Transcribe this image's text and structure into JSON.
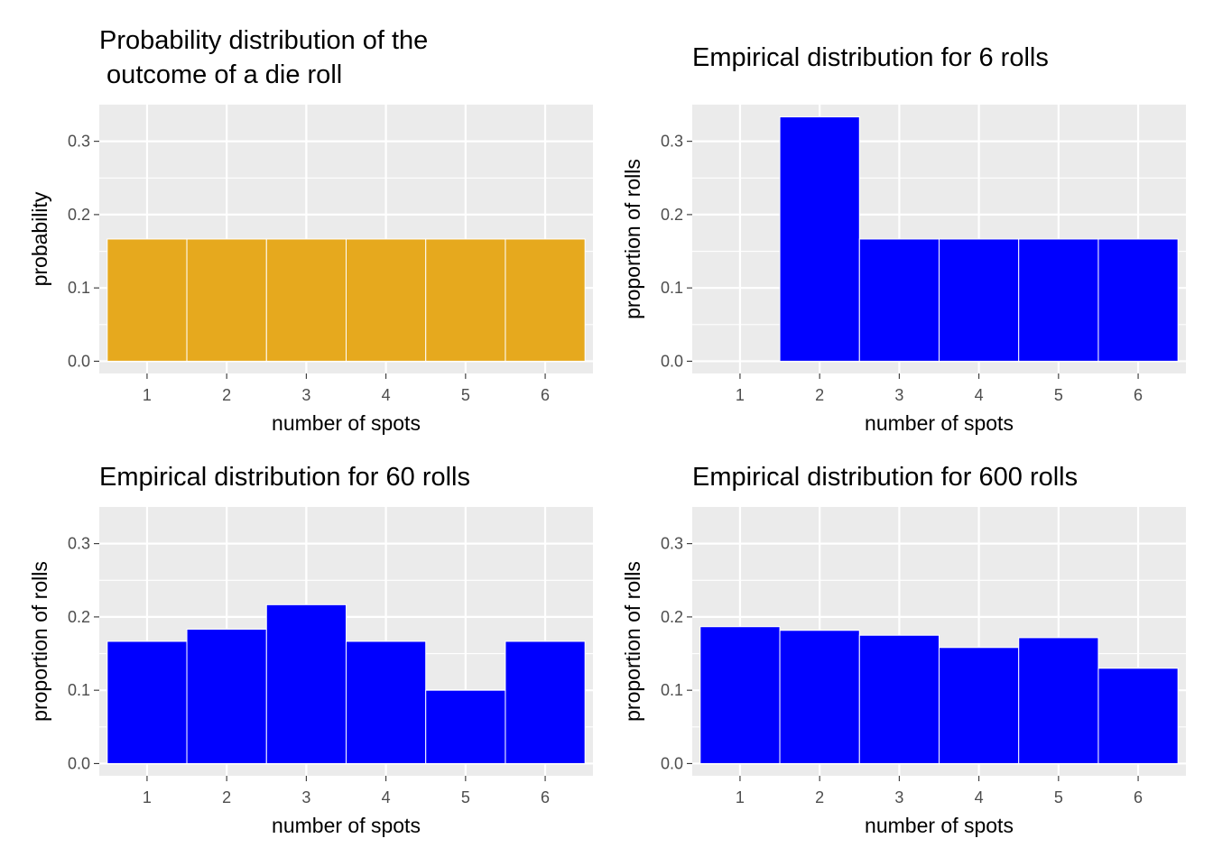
{
  "chart_data": [
    {
      "type": "bar",
      "title_lines": [
        "Probability distribution of the",
        " outcome of a die roll"
      ],
      "xlabel": "number of spots",
      "ylabel": "probability",
      "categories": [
        "1",
        "2",
        "3",
        "4",
        "5",
        "6"
      ],
      "values": [
        0.1667,
        0.1667,
        0.1667,
        0.1667,
        0.1667,
        0.1667
      ],
      "ylim": [
        0,
        0.35
      ],
      "yticks": [
        0.0,
        0.1,
        0.2,
        0.3
      ],
      "ytick_labels": [
        "0.0",
        "0.1",
        "0.2",
        "0.3"
      ],
      "bar_color": "#E6A91E",
      "grid": true
    },
    {
      "type": "bar",
      "title_lines": [
        "Empirical distribution for 6 rolls"
      ],
      "xlabel": "number of spots",
      "ylabel": "proportion of rolls",
      "categories": [
        "1",
        "2",
        "3",
        "4",
        "5",
        "6"
      ],
      "values": [
        0,
        0.3333,
        0.1667,
        0.1667,
        0.1667,
        0.1667
      ],
      "ylim": [
        0,
        0.35
      ],
      "yticks": [
        0.0,
        0.1,
        0.2,
        0.3
      ],
      "ytick_labels": [
        "0.0",
        "0.1",
        "0.2",
        "0.3"
      ],
      "bar_color": "#0000FF",
      "grid": true
    },
    {
      "type": "bar",
      "title_lines": [
        "Empirical distribution for 60 rolls"
      ],
      "xlabel": "number of spots",
      "ylabel": "proportion of rolls",
      "categories": [
        "1",
        "2",
        "3",
        "4",
        "5",
        "6"
      ],
      "values": [
        0.1667,
        0.1833,
        0.2167,
        0.1667,
        0.1,
        0.1667
      ],
      "ylim": [
        0,
        0.35
      ],
      "yticks": [
        0.0,
        0.1,
        0.2,
        0.3
      ],
      "ytick_labels": [
        "0.0",
        "0.1",
        "0.2",
        "0.3"
      ],
      "bar_color": "#0000FF",
      "grid": true
    },
    {
      "type": "bar",
      "title_lines": [
        "Empirical distribution for 600 rolls"
      ],
      "xlabel": "number of spots",
      "ylabel": "proportion of rolls",
      "categories": [
        "1",
        "2",
        "3",
        "4",
        "5",
        "6"
      ],
      "values": [
        0.1867,
        0.1817,
        0.175,
        0.1583,
        0.1717,
        0.13
      ],
      "ylim": [
        0,
        0.35
      ],
      "yticks": [
        0.0,
        0.1,
        0.2,
        0.3
      ],
      "ytick_labels": [
        "0.0",
        "0.1",
        "0.2",
        "0.3"
      ],
      "bar_color": "#0000FF",
      "grid": true
    }
  ]
}
